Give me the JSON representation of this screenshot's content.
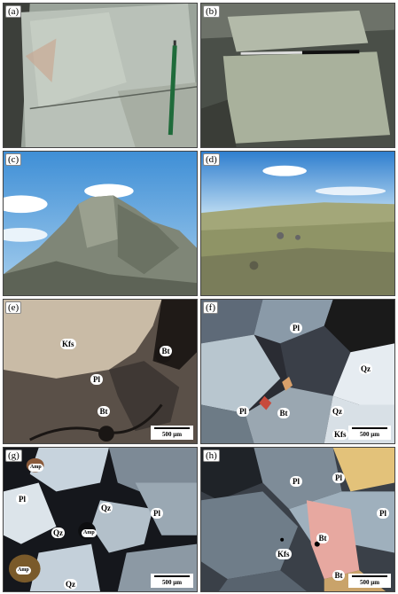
{
  "panels": {
    "a": {
      "label": "(a)"
    },
    "b": {
      "label": "(b)"
    },
    "c": {
      "label": "(c)"
    },
    "d": {
      "label": "(d)"
    },
    "e": {
      "label": "(e)",
      "scale": "500 µm",
      "minerals": {
        "kfs": "Kfs",
        "bt1": "Bt",
        "pl": "Pl",
        "bt2": "Bt"
      }
    },
    "f": {
      "label": "(f)",
      "scale": "500 µm",
      "minerals": {
        "pl1": "Pl",
        "qz1": "Qz",
        "pl2": "Pl",
        "bt": "Bt",
        "qz2": "Qz",
        "kfs": "Kfs"
      }
    },
    "g": {
      "label": "(g)",
      "scale": "500 µm",
      "minerals": {
        "amp1": "Amp",
        "pl1": "Pl",
        "qz1": "Qz",
        "pl2": "Pl",
        "qz2": "Qz",
        "amp2": "Amp",
        "amp3": "Amp",
        "qz3": "Qz"
      }
    },
    "h": {
      "label": "(h)",
      "scale": "500 µm",
      "minerals": {
        "pl1": "Pl",
        "pl2": "Pl",
        "pl3": "Pl",
        "bt1": "Bt",
        "kfs": "Kfs",
        "bt2": "Bt"
      }
    }
  }
}
